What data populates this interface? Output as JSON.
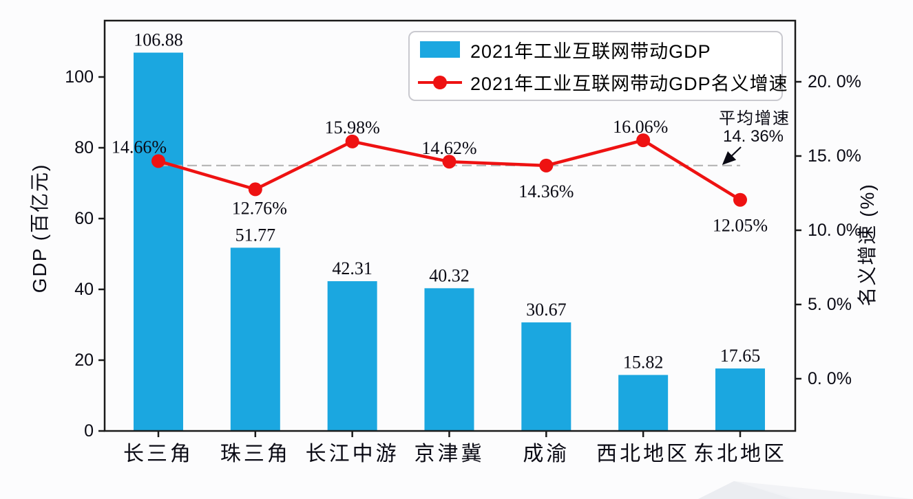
{
  "page": {
    "background": "#fcfcfd"
  },
  "chart_data": {
    "type": "bar+line combo",
    "title": "",
    "categories": [
      "长三角",
      "珠三角",
      "长江中游",
      "京津冀",
      "成渝",
      "西北地区",
      "东北地区"
    ],
    "series": [
      {
        "name": "2021年工业互联网带动GDP",
        "type": "bar",
        "axis": "left",
        "color": "#1ba7e0",
        "values": [
          106.88,
          51.77,
          42.31,
          40.32,
          30.67,
          15.82,
          17.65
        ],
        "labels": [
          "106.88",
          "51.77",
          "42.31",
          "40.32",
          "30.67",
          "15.82",
          "17.65"
        ]
      },
      {
        "name": "2021年工业互联网带动GDP名义增速",
        "type": "line",
        "axis": "right",
        "color": "#ee1212",
        "values": [
          14.66,
          12.76,
          15.98,
          14.62,
          14.36,
          16.06,
          12.05
        ],
        "labels": [
          "14.66%",
          "12.76%",
          "15.98%",
          "14.62%",
          "14.36%",
          "16.06%",
          "12.05%"
        ],
        "label_pos": [
          "above-left",
          "below",
          "above",
          "above",
          "below",
          "above",
          "below"
        ]
      }
    ],
    "left_axis": {
      "label": "GDP (百亿元)",
      "tick_values": [
        0,
        20,
        40,
        60,
        80,
        100
      ],
      "tick_labels": [
        "0",
        "20",
        "40",
        "60",
        "80",
        "100"
      ],
      "range": [
        0,
        116
      ]
    },
    "right_axis": {
      "label": "名义增速 (%)",
      "tick_values": [
        0,
        5,
        10,
        15,
        20
      ],
      "tick_labels": [
        "0. 0%",
        "5. 0%",
        "10. 0%",
        "15. 0%",
        "20. 0%"
      ],
      "range": [
        -3.6,
        24.0
      ]
    },
    "average_line": {
      "value": 14.36,
      "color": "#b3b3b3",
      "annotation_line1": "平均增速",
      "annotation_line2": "14. 36%"
    },
    "legend_position": "upper right",
    "grid": false,
    "colors": {
      "bar": "#1ba7e0",
      "line": "#ee1212",
      "spine": "#1a1a1a",
      "text": "#0a0a14",
      "dashed": "#b3b3b3"
    }
  }
}
